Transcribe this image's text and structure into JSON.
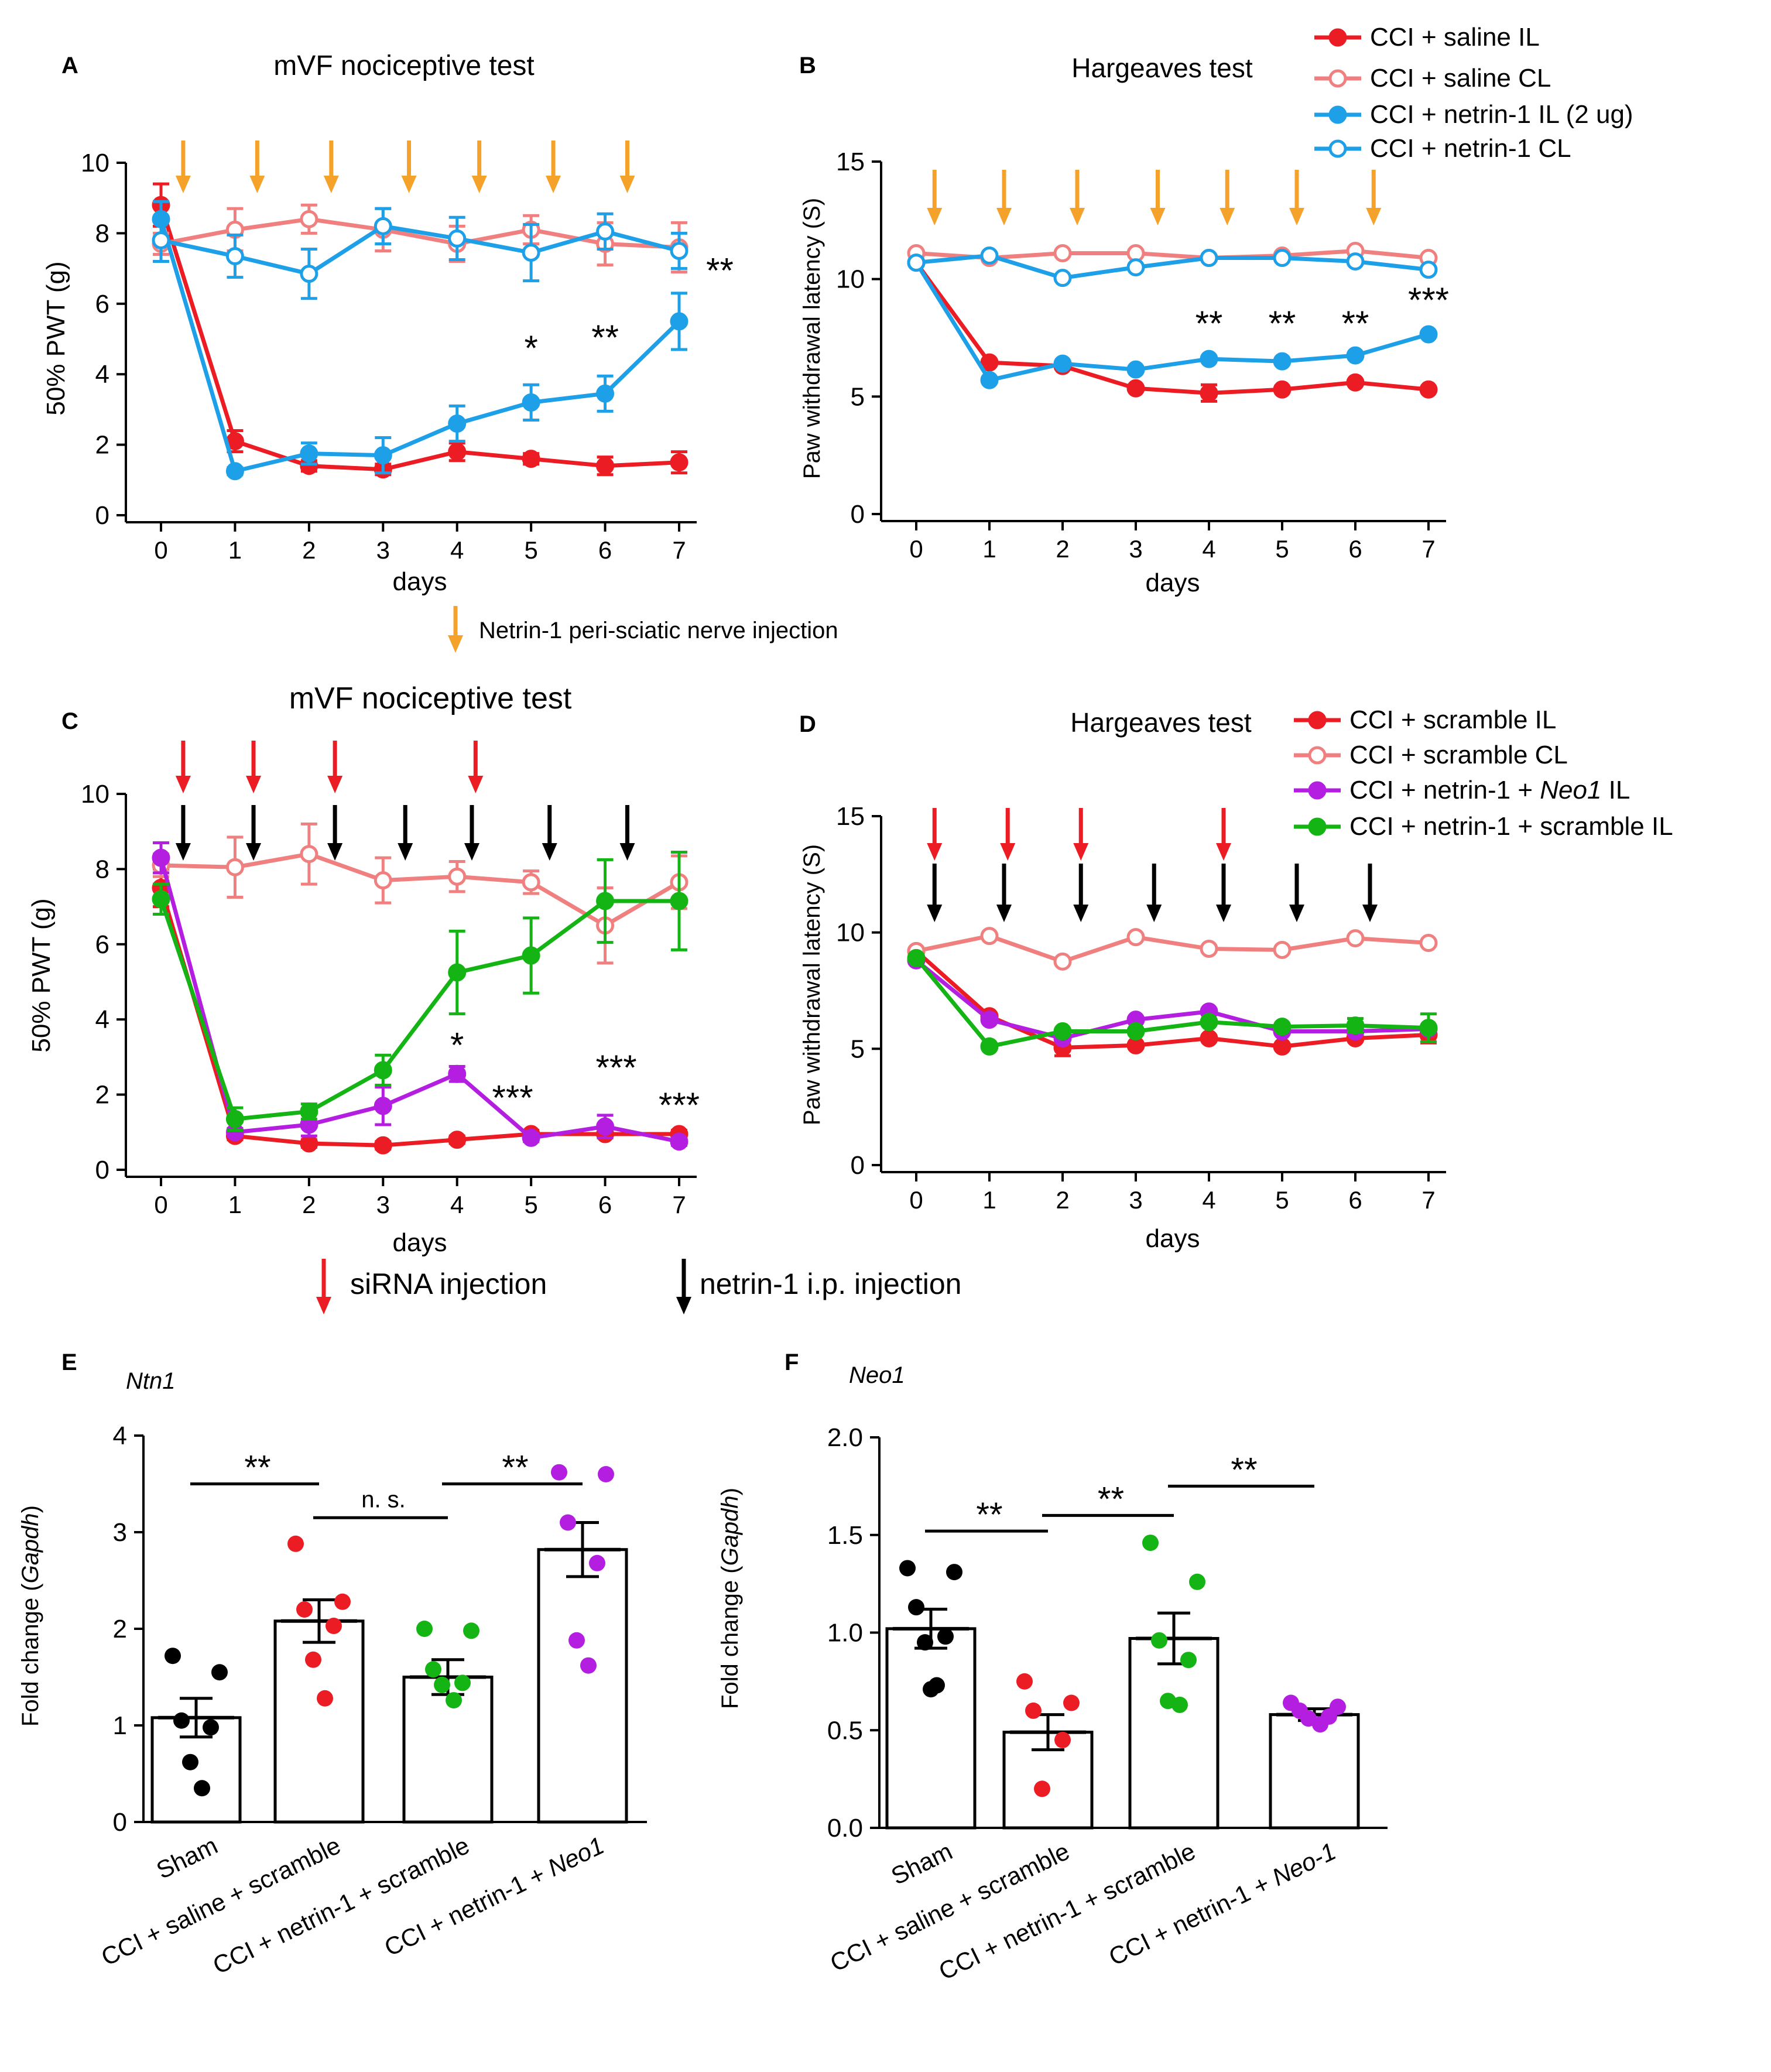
{
  "colors": {
    "red": "#ec1c24",
    "pink": "#f08080",
    "blue": "#1ea0e8",
    "purple": "#b41ee0",
    "green": "#14b414",
    "orange": "#f5a22a",
    "black": "#000000"
  },
  "annotations": {
    "netrin_injection": "Netrin-1 peri-sciatic nerve injection",
    "sirna_injection": "siRNA injection",
    "netrin_ip_injection": "netrin-1 i.p. injection"
  },
  "chart_data": [
    {
      "id": "A",
      "panel_label": "A",
      "type": "line",
      "title": "mVF nociceptive test",
      "xlabel": "days",
      "ylabel": "50% PWT (g)",
      "x": [
        0,
        1,
        2,
        3,
        4,
        5,
        6,
        7
      ],
      "xlim": [
        0,
        7
      ],
      "ylim": [
        0,
        10
      ],
      "yticks": [
        0,
        2,
        4,
        6,
        8,
        10
      ],
      "arrows": [
        {
          "x": 0.3,
          "color": "orange"
        },
        {
          "x": 1.3,
          "color": "orange"
        },
        {
          "x": 2.3,
          "color": "orange"
        },
        {
          "x": 3.35,
          "color": "orange"
        },
        {
          "x": 4.3,
          "color": "orange"
        },
        {
          "x": 5.3,
          "color": "orange"
        },
        {
          "x": 6.3,
          "color": "orange"
        }
      ],
      "stars": [
        {
          "x": 5,
          "y": 4.4,
          "label": "*"
        },
        {
          "x": 6,
          "y": 4.7,
          "label": "**"
        },
        {
          "x": 7.55,
          "y": 6.6,
          "label": "**"
        }
      ],
      "series": [
        {
          "name": "CCI + saline IL",
          "color": "red",
          "filled": true,
          "values": [
            8.8,
            2.1,
            1.4,
            1.3,
            1.8,
            1.6,
            1.4,
            1.5
          ],
          "errors": [
            0.6,
            0.3,
            0.15,
            0.15,
            0.25,
            0.15,
            0.25,
            0.3
          ]
        },
        {
          "name": "CCI + saline CL",
          "color": "pink",
          "filled": false,
          "values": [
            7.7,
            8.1,
            8.4,
            8.1,
            7.7,
            8.1,
            7.7,
            7.6
          ],
          "errors": [
            0.3,
            0.6,
            0.4,
            0.6,
            0.5,
            0.4,
            0.6,
            0.7
          ]
        },
        {
          "name": "CCI + netrin-1 IL (2 ug)",
          "color": "blue",
          "filled": true,
          "values": [
            8.4,
            1.25,
            1.75,
            1.7,
            2.6,
            3.2,
            3.45,
            5.5
          ],
          "errors": [
            0.5,
            0.1,
            0.3,
            0.5,
            0.5,
            0.5,
            0.5,
            0.8
          ]
        },
        {
          "name": "CCI + netrin-1 CL",
          "color": "blue",
          "filled": false,
          "values": [
            7.8,
            7.35,
            6.85,
            8.2,
            7.85,
            7.45,
            8.05,
            7.5
          ],
          "errors": [
            0.6,
            0.6,
            0.7,
            0.5,
            0.6,
            0.8,
            0.5,
            0.5
          ]
        }
      ]
    },
    {
      "id": "B",
      "panel_label": "B",
      "type": "line",
      "title": "Hargeaves test",
      "xlabel": "days",
      "ylabel": "Paw withdrawal latency (S)",
      "x": [
        0,
        1,
        2,
        3,
        4,
        5,
        6,
        7
      ],
      "xlim": [
        0,
        7
      ],
      "ylim": [
        0,
        15
      ],
      "yticks": [
        0,
        5,
        10,
        15
      ],
      "arrows": [
        {
          "x": 0.25,
          "color": "orange"
        },
        {
          "x": 1.2,
          "color": "orange"
        },
        {
          "x": 2.2,
          "color": "orange"
        },
        {
          "x": 3.3,
          "color": "orange"
        },
        {
          "x": 4.25,
          "color": "orange"
        },
        {
          "x": 5.2,
          "color": "orange"
        },
        {
          "x": 6.25,
          "color": "orange"
        }
      ],
      "stars": [
        {
          "x": 4,
          "y": 7.6,
          "label": "**"
        },
        {
          "x": 5,
          "y": 7.6,
          "label": "**"
        },
        {
          "x": 6,
          "y": 7.6,
          "label": "**"
        },
        {
          "x": 7,
          "y": 8.6,
          "label": "***"
        }
      ],
      "series": [
        {
          "name": "CCI + saline IL",
          "color": "red",
          "filled": true,
          "values": [
            10.7,
            6.45,
            6.3,
            5.35,
            5.15,
            5.3,
            5.6,
            5.3
          ],
          "errors": [
            0.1,
            0.1,
            0.1,
            0.1,
            0.35,
            0.1,
            0.1,
            0.1
          ]
        },
        {
          "name": "CCI + saline CL",
          "color": "pink",
          "filled": false,
          "values": [
            11.1,
            10.9,
            11.1,
            11.1,
            10.9,
            11.0,
            11.2,
            10.9
          ],
          "errors": [
            0.1,
            0.1,
            0.1,
            0.1,
            0.1,
            0.1,
            0.1,
            0.1
          ]
        },
        {
          "name": "CCI + netrin-1 IL (2 ug)",
          "color": "blue",
          "filled": true,
          "values": [
            10.7,
            5.7,
            6.4,
            6.15,
            6.6,
            6.5,
            6.75,
            7.65
          ],
          "errors": [
            0.1,
            0.1,
            0.1,
            0.1,
            0.1,
            0.1,
            0.1,
            0.1
          ]
        },
        {
          "name": "CCI + netrin-1 CL",
          "color": "blue",
          "filled": false,
          "values": [
            10.7,
            11.0,
            10.05,
            10.5,
            10.9,
            10.9,
            10.75,
            10.4
          ],
          "errors": [
            0.1,
            0.1,
            0.1,
            0.1,
            0.1,
            0.1,
            0.1,
            0.1
          ]
        }
      ]
    },
    {
      "id": "C",
      "panel_label": "C",
      "type": "line",
      "title": "mVF nociceptive test",
      "xlabel": "days",
      "ylabel": "50% PWT (g)",
      "x": [
        0,
        1,
        2,
        3,
        4,
        5,
        6,
        7
      ],
      "xlim": [
        0,
        7
      ],
      "ylim": [
        0,
        10
      ],
      "yticks": [
        0,
        2,
        4,
        6,
        8,
        10
      ],
      "arrows": [
        {
          "x": 0.3,
          "color": "red",
          "row": "top"
        },
        {
          "x": 1.25,
          "color": "red",
          "row": "top"
        },
        {
          "x": 2.35,
          "color": "red",
          "row": "top"
        },
        {
          "x": 4.25,
          "color": "red",
          "row": "top"
        },
        {
          "x": 0.3,
          "color": "black",
          "row": "bottom"
        },
        {
          "x": 1.25,
          "color": "black",
          "row": "bottom"
        },
        {
          "x": 2.35,
          "color": "black",
          "row": "bottom"
        },
        {
          "x": 3.3,
          "color": "black",
          "row": "bottom"
        },
        {
          "x": 4.2,
          "color": "black",
          "row": "bottom"
        },
        {
          "x": 5.25,
          "color": "black",
          "row": "bottom"
        },
        {
          "x": 6.3,
          "color": "black",
          "row": "bottom"
        }
      ],
      "stars": [
        {
          "x": 4,
          "y": 3.0,
          "label": "*"
        },
        {
          "x": 4.75,
          "y": 1.6,
          "label": "***"
        },
        {
          "x": 6.15,
          "y": 2.4,
          "label": "***"
        },
        {
          "x": 7,
          "y": 1.4,
          "label": "***"
        }
      ],
      "series": [
        {
          "name": "CCI + scramble IL",
          "color": "red",
          "filled": true,
          "values": [
            7.5,
            0.9,
            0.7,
            0.65,
            0.8,
            0.95,
            0.95,
            0.95
          ],
          "errors": [
            0.5,
            0.1,
            0.1,
            0.1,
            0.1,
            0.1,
            0.1,
            0.1
          ]
        },
        {
          "name": "CCI + scramble CL",
          "color": "pink",
          "filled": false,
          "values": [
            8.1,
            8.05,
            8.4,
            7.7,
            7.8,
            7.65,
            6.5,
            7.65
          ],
          "errors": [
            0.3,
            0.8,
            0.8,
            0.6,
            0.4,
            0.3,
            1.0,
            0.7
          ]
        },
        {
          "name": "CCI + netrin-1 + Neo1 IL",
          "color": "purple",
          "filled": true,
          "values": [
            8.3,
            1.0,
            1.2,
            1.7,
            2.55,
            0.85,
            1.15,
            0.75
          ],
          "errors": [
            0.4,
            0.1,
            0.3,
            0.5,
            0.2,
            0.1,
            0.3,
            0.1
          ]
        },
        {
          "name": "CCI + netrin-1 + scramble IL",
          "color": "green",
          "filled": true,
          "values": [
            7.2,
            1.35,
            1.55,
            2.65,
            5.25,
            5.7,
            7.15,
            7.15
          ],
          "errors": [
            0.4,
            0.3,
            0.2,
            0.4,
            1.1,
            1.0,
            1.1,
            1.3
          ]
        }
      ]
    },
    {
      "id": "D",
      "panel_label": "D",
      "type": "line",
      "title": "Hargeaves test",
      "xlabel": "days",
      "ylabel": "Paw withdrawal latency (S)",
      "x": [
        0,
        1,
        2,
        3,
        4,
        5,
        6,
        7
      ],
      "xlim": [
        0,
        7
      ],
      "ylim": [
        0,
        15
      ],
      "yticks": [
        0,
        5,
        10,
        15
      ],
      "arrows": [
        {
          "x": 0.25,
          "color": "red",
          "row": "top"
        },
        {
          "x": 1.25,
          "color": "red",
          "row": "top"
        },
        {
          "x": 2.25,
          "color": "red",
          "row": "top"
        },
        {
          "x": 4.2,
          "color": "red",
          "row": "top"
        },
        {
          "x": 0.25,
          "color": "black",
          "row": "bottom"
        },
        {
          "x": 1.2,
          "color": "black",
          "row": "bottom"
        },
        {
          "x": 2.25,
          "color": "black",
          "row": "bottom"
        },
        {
          "x": 3.25,
          "color": "black",
          "row": "bottom"
        },
        {
          "x": 4.2,
          "color": "black",
          "row": "bottom"
        },
        {
          "x": 5.2,
          "color": "black",
          "row": "bottom"
        },
        {
          "x": 6.2,
          "color": "black",
          "row": "bottom"
        }
      ],
      "stars": [],
      "series": [
        {
          "name": "CCI + scramble IL",
          "color": "red",
          "filled": true,
          "values": [
            9.2,
            6.4,
            5.05,
            5.15,
            5.45,
            5.1,
            5.45,
            5.6
          ],
          "errors": [
            0.1,
            0.1,
            0.35,
            0.1,
            0.1,
            0.1,
            0.1,
            0.35
          ]
        },
        {
          "name": "CCI + scramble CL",
          "color": "pink",
          "filled": false,
          "values": [
            9.2,
            9.85,
            8.75,
            9.8,
            9.3,
            9.25,
            9.75,
            9.55
          ],
          "errors": [
            0.1,
            0.1,
            0.1,
            0.1,
            0.1,
            0.1,
            0.1,
            0.1
          ]
        },
        {
          "name": "CCI + netrin-1 + Neo1 IL",
          "color": "purple",
          "filled": true,
          "values": [
            8.8,
            6.25,
            5.45,
            6.25,
            6.6,
            5.75,
            5.75,
            5.85
          ],
          "errors": [
            0.1,
            0.1,
            0.1,
            0.1,
            0.1,
            0.1,
            0.1,
            0.1
          ]
        },
        {
          "name": "CCI + netrin-1 + scramble IL",
          "color": "green",
          "filled": true,
          "values": [
            8.9,
            5.1,
            5.75,
            5.75,
            6.15,
            5.95,
            6.0,
            5.9
          ],
          "errors": [
            0.1,
            0.1,
            0.1,
            0.1,
            0.1,
            0.1,
            0.3,
            0.6
          ]
        }
      ]
    },
    {
      "id": "E",
      "panel_label": "E",
      "type": "bar",
      "gene": "Ntn1",
      "ylabel_prefix": "Fold change (",
      "ylabel_italic": "Gapdh",
      "ylabel_suffix": ")",
      "ylim": [
        0,
        4
      ],
      "yticks": [
        0,
        1,
        2,
        3,
        4
      ],
      "categories": [
        "Sham",
        "CCI + saline + scramble",
        "CCI + netrin-1 + scramble",
        "CCI + netrin-1 + "
      ],
      "category_italic_suffix": [
        "",
        "",
        "",
        "Neo1"
      ],
      "point_colors": [
        "black",
        "red",
        "green",
        "purple"
      ],
      "means": [
        1.08,
        2.08,
        1.5,
        2.82
      ],
      "sem": [
        0.2,
        0.22,
        0.18,
        0.28
      ],
      "points": [
        [
          1.72,
          1.55,
          1.05,
          0.98,
          0.62,
          0.35
        ],
        [
          2.88,
          2.28,
          2.2,
          2.03,
          1.68,
          1.28
        ],
        [
          2.0,
          1.98,
          1.58,
          1.44,
          1.42,
          1.26
        ],
        [
          3.62,
          3.6,
          3.1,
          2.68,
          1.88,
          1.62
        ]
      ],
      "brackets": [
        {
          "from": 0,
          "to": 1,
          "y": 3.5,
          "label": "**"
        },
        {
          "from": 1,
          "to": 2,
          "y": 3.15,
          "label": "n. s."
        },
        {
          "from": 2,
          "to": 3,
          "y": 3.5,
          "label": "**"
        }
      ]
    },
    {
      "id": "F",
      "panel_label": "F",
      "type": "bar",
      "gene": "Neo1",
      "ylabel_prefix": "Fold change (",
      "ylabel_italic": "Gapdh",
      "ylabel_suffix": ")",
      "ylim": [
        0,
        2
      ],
      "yticks": [
        0.0,
        0.5,
        1.0,
        1.5,
        2.0
      ],
      "tick_labels": [
        "0.0",
        "0.5",
        "1.0",
        "1.5",
        "2.0"
      ],
      "categories": [
        "Sham",
        "CCI + saline + scramble",
        "CCI + netrin-1 + scramble",
        "CCI + netrin-1 + "
      ],
      "category_italic_suffix": [
        "",
        "",
        "",
        "Neo-1"
      ],
      "point_colors": [
        "black",
        "red",
        "green",
        "purple"
      ],
      "means": [
        1.02,
        0.49,
        0.97,
        0.58
      ],
      "sem": [
        0.1,
        0.09,
        0.13,
        0.03
      ],
      "points": [
        [
          1.33,
          1.31,
          1.13,
          0.98,
          0.95,
          0.73,
          0.71
        ],
        [
          0.75,
          0.64,
          0.6,
          0.45,
          0.2
        ],
        [
          1.46,
          1.26,
          0.96,
          0.86,
          0.65,
          0.63
        ],
        [
          0.64,
          0.62,
          0.6,
          0.57,
          0.56,
          0.53
        ]
      ],
      "brackets": [
        {
          "from": 0,
          "to": 1,
          "y": 1.52,
          "label": "**"
        },
        {
          "from": 1,
          "to": 2,
          "y": 1.6,
          "label": "**"
        },
        {
          "from": 2,
          "to": 3,
          "y": 1.75,
          "label": "**"
        }
      ]
    }
  ]
}
